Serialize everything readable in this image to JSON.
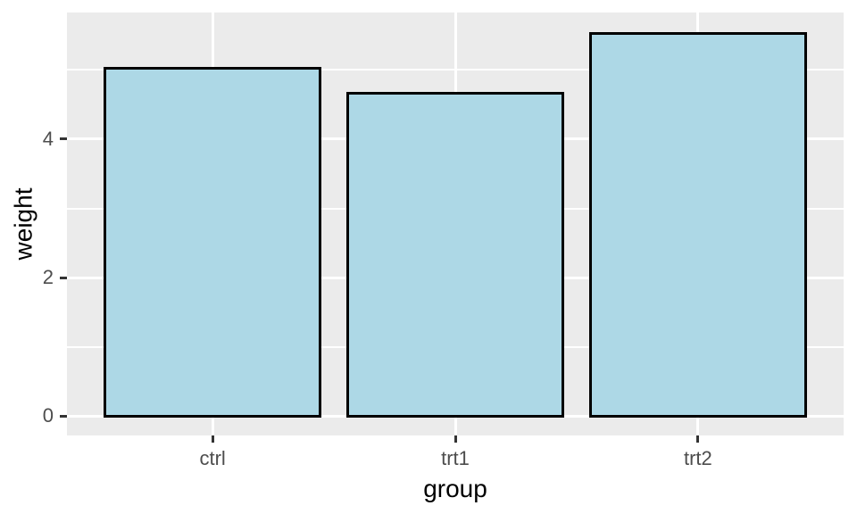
{
  "chart_data": {
    "type": "bar",
    "categories": [
      "ctrl",
      "trt1",
      "trt2"
    ],
    "values": [
      5.03,
      4.66,
      5.53
    ],
    "title": "",
    "xlabel": "group",
    "ylabel": "weight",
    "ylim": [
      -0.28,
      5.83
    ],
    "y_major_ticks": [
      0,
      2,
      4
    ],
    "y_minor_gridlines": [
      1,
      3,
      5
    ],
    "y_tick_labels": [
      "0",
      "2",
      "4"
    ],
    "grid": true,
    "legend": "none",
    "bar_width_fraction": 0.9,
    "x_range_units": [
      0.4,
      3.6
    ]
  },
  "style": {
    "outer_bg": "#FFFFFF",
    "panel_bg": "#EBEBEB",
    "grid_color": "#FFFFFF",
    "bar_fill": "#ADD8E6",
    "bar_border": "#000000",
    "tick_mark_color": "#333333",
    "tick_label_color": "#4D4D4D",
    "axis_title_color": "#000000"
  }
}
